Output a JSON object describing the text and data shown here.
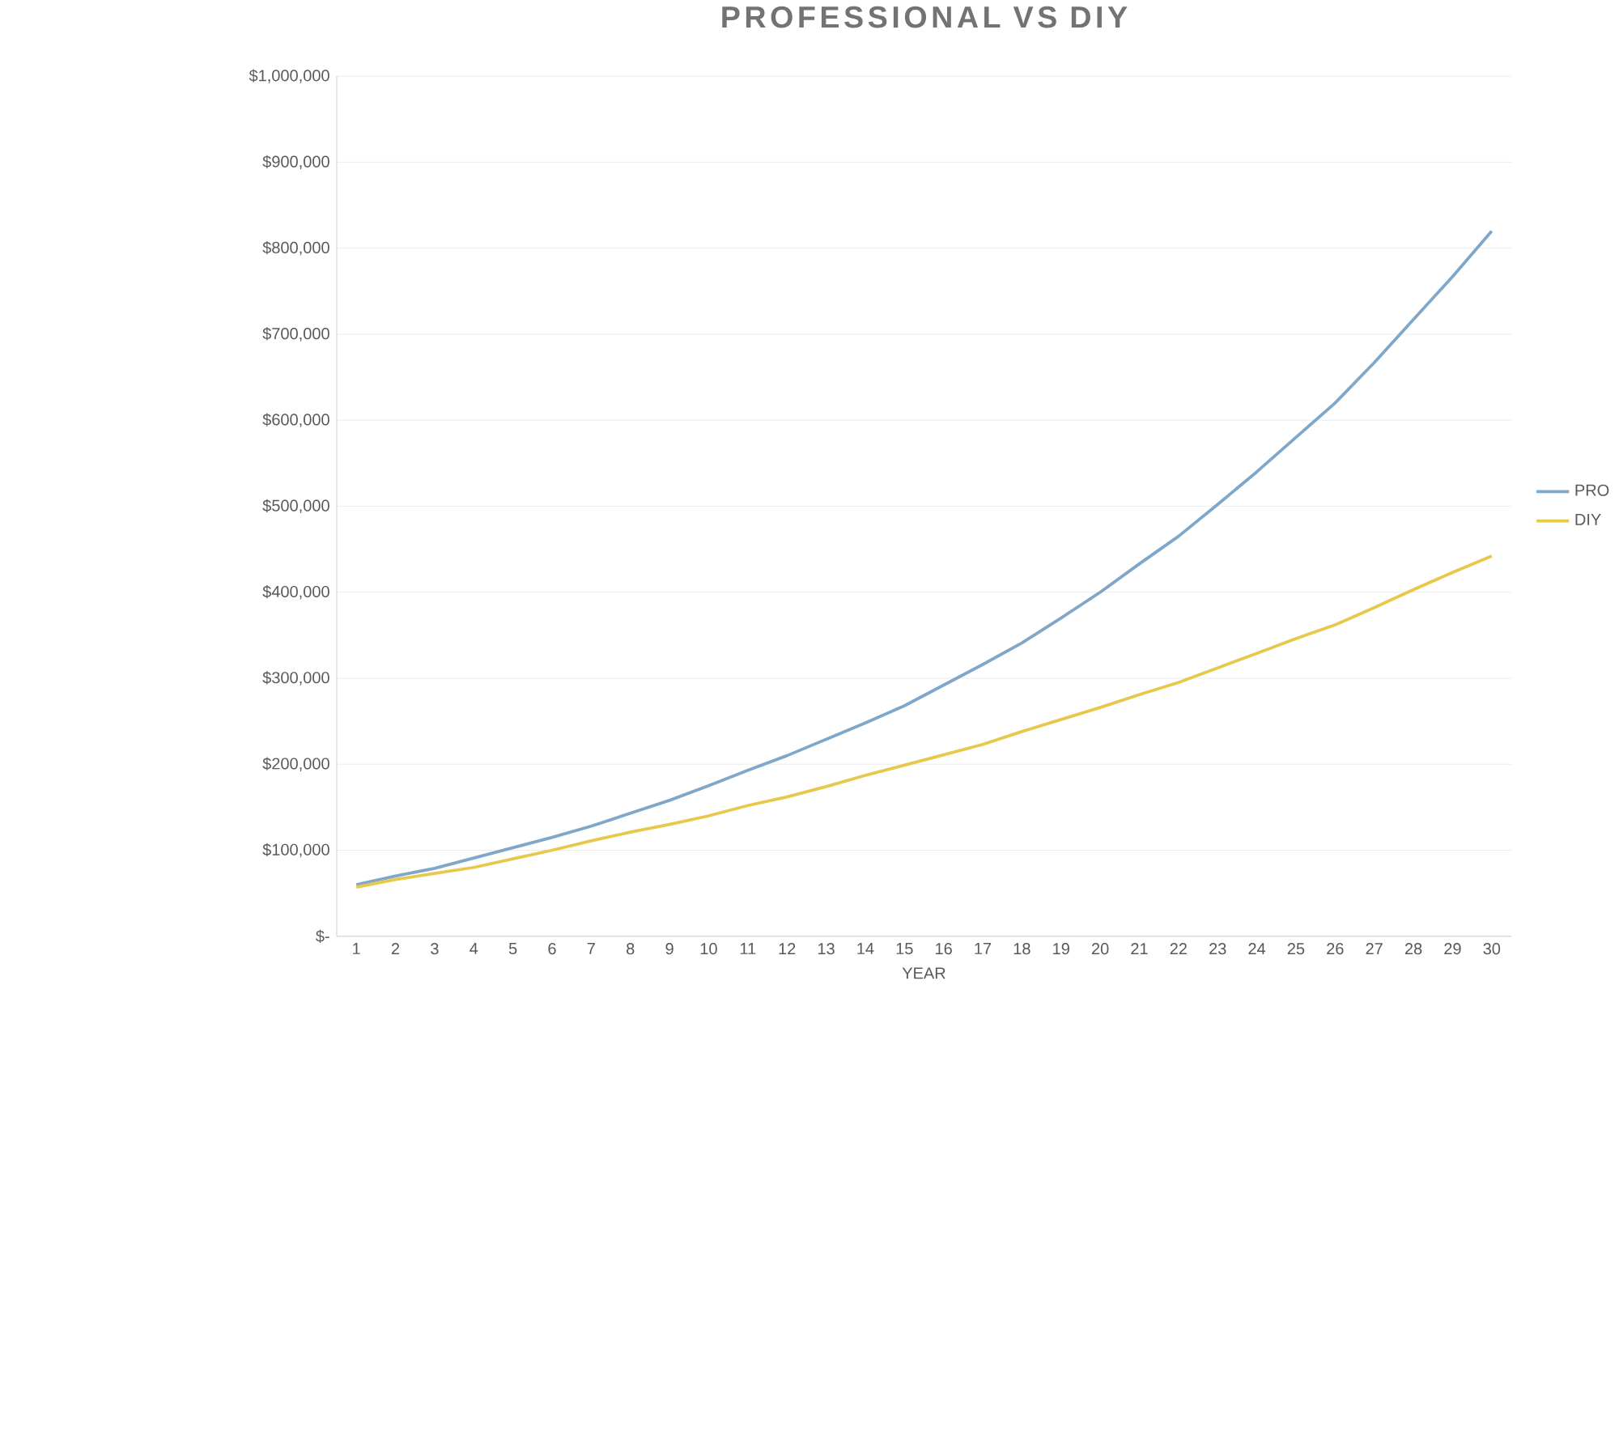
{
  "chart_data": {
    "type": "line",
    "title": "PROFESSIONAL VS DIY",
    "xlabel": "YEAR",
    "categories": [
      "1",
      "2",
      "3",
      "4",
      "5",
      "6",
      "7",
      "8",
      "9",
      "10",
      "11",
      "12",
      "13",
      "14",
      "15",
      "16",
      "17",
      "18",
      "19",
      "20",
      "21",
      "22",
      "23",
      "24",
      "25",
      "26",
      "27",
      "28",
      "29",
      "30"
    ],
    "series": [
      {
        "name": "PRO",
        "color": "#7fa7c9",
        "values": [
          60000,
          70000,
          79000,
          91000,
          103000,
          115000,
          128000,
          143000,
          158000,
          175000,
          193000,
          210000,
          229000,
          248000,
          268000,
          292000,
          316000,
          341000,
          370000,
          400000,
          433000,
          465000,
          502000,
          540000,
          580000,
          620000,
          667000,
          717000,
          767000,
          820000
        ]
      },
      {
        "name": "DIY",
        "color": "#e8c84a",
        "values": [
          57000,
          66000,
          73000,
          80000,
          90000,
          100000,
          111000,
          121000,
          130000,
          140000,
          152000,
          162000,
          174000,
          187000,
          199000,
          211000,
          223000,
          238000,
          252000,
          266000,
          281000,
          295000,
          312000,
          329000,
          346000,
          362000,
          382000,
          403000,
          423000,
          442000
        ]
      }
    ],
    "ylim": [
      0,
      1000000
    ],
    "yticks": [
      {
        "value": 0,
        "label": "$-"
      },
      {
        "value": 100000,
        "label": "$100,000"
      },
      {
        "value": 200000,
        "label": "$200,000"
      },
      {
        "value": 300000,
        "label": "$300,000"
      },
      {
        "value": 400000,
        "label": "$400,000"
      },
      {
        "value": 500000,
        "label": "$500,000"
      },
      {
        "value": 600000,
        "label": "$600,000"
      },
      {
        "value": 700000,
        "label": "$700,000"
      },
      {
        "value": 800000,
        "label": "$800,000"
      },
      {
        "value": 900000,
        "label": "$900,000"
      },
      {
        "value": 1000000,
        "label": "$1,000,000"
      }
    ],
    "grid": "y",
    "legend": "right",
    "marker": "none",
    "line_style": "solid"
  }
}
